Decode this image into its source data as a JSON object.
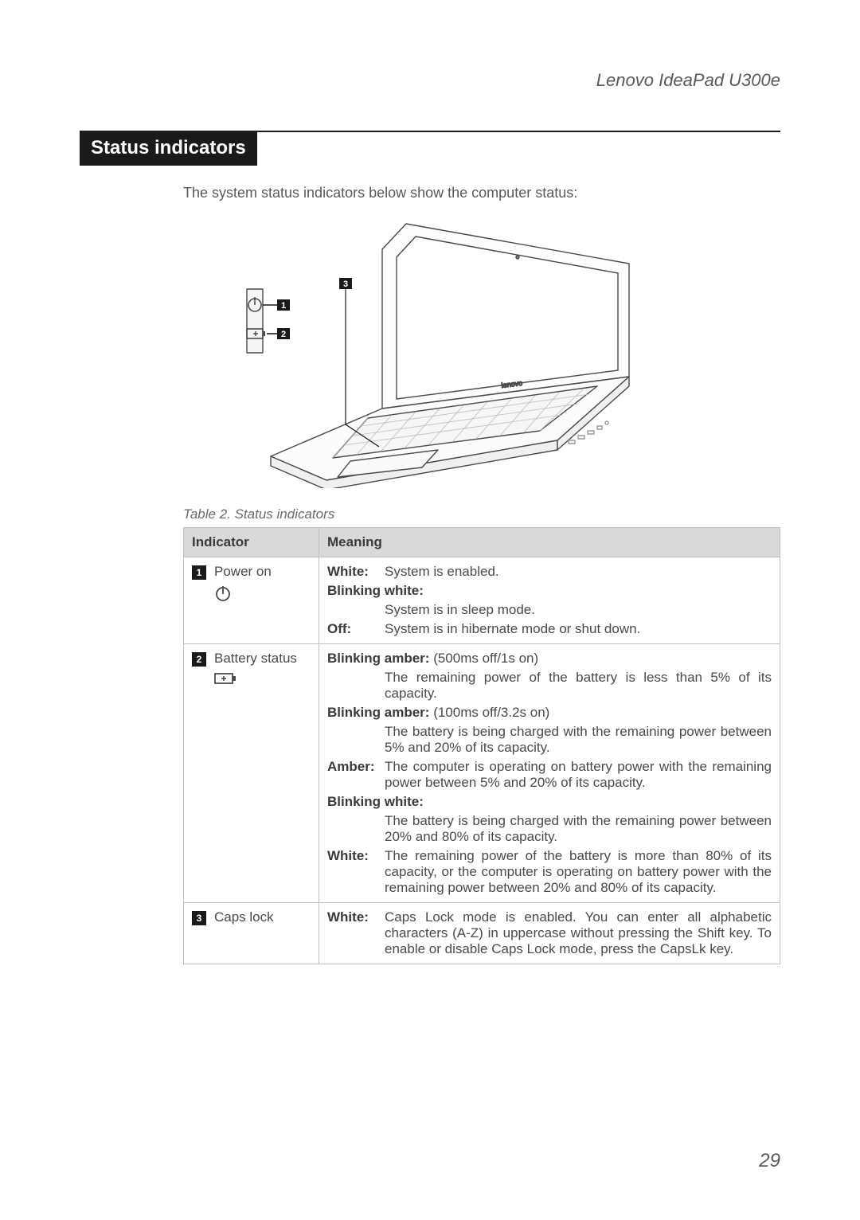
{
  "header": {
    "product": "Lenovo IdeaPad U300e"
  },
  "section": {
    "heading": "Status indicators",
    "intro": "The system status indicators below show the computer status:"
  },
  "figure": {
    "callouts": [
      "1",
      "2",
      "3"
    ],
    "colors": {
      "line": "#4a4a4a",
      "badge_bg": "#1a1a1a",
      "badge_fg": "#ffffff",
      "body_fill": "#f7f7f7"
    }
  },
  "table": {
    "caption": "Table 2. Status indicators",
    "headers": [
      "Indicator",
      "Meaning"
    ],
    "rows": [
      {
        "num": "1",
        "num_filled": true,
        "indicator": "Power on",
        "icon": "power",
        "meanings": [
          {
            "label": "White:",
            "text": "System is enabled."
          },
          {
            "label_full": "Blinking white:"
          },
          {
            "indent_text": "System is in sleep mode."
          },
          {
            "label": "Off:",
            "text": "System is in hibernate mode or shut down."
          }
        ]
      },
      {
        "num": "2",
        "num_filled": false,
        "indicator": "Battery status",
        "icon": "battery",
        "meanings": [
          {
            "inline_label": "Blinking amber:",
            "inline_text": " (500ms off/1s on)"
          },
          {
            "indent_text": "The remaining power of the battery is less than 5% of its capacity."
          },
          {
            "inline_label": "Blinking amber:",
            "inline_text": " (100ms off/3.2s on)"
          },
          {
            "indent_text": "The battery is being charged with the remaining power between 5% and 20% of its capacity."
          },
          {
            "label": "Amber:",
            "text": "The computer is operating on battery power with the remaining power between 5% and 20% of its capacity."
          },
          {
            "label_full": "Blinking white:"
          },
          {
            "indent_text": "The battery is being charged with the remaining power between 20% and 80% of its capacity."
          },
          {
            "label": "White:",
            "text": "The remaining power of the battery is more than 80% of its capacity, or the computer is operating on battery power with the remaining power between 20% and 80% of its capacity."
          }
        ]
      },
      {
        "num": "3",
        "num_filled": false,
        "indicator": "Caps lock",
        "icon": "none",
        "meanings": [
          {
            "label": "White:",
            "text": "Caps Lock mode is enabled. You can enter all alphabetic characters (A-Z) in uppercase without pressing the Shift key. To enable or disable Caps Lock mode, press the CapsLk key."
          }
        ]
      }
    ]
  },
  "page_number": "29"
}
